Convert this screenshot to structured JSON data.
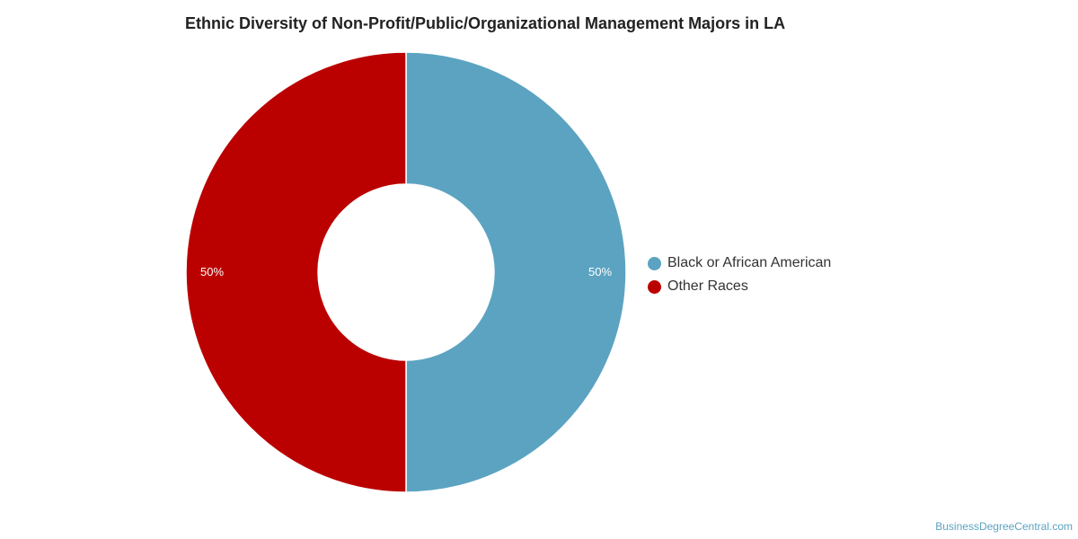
{
  "chart_data": {
    "type": "pie",
    "title": "Ethnic Diversity of Non-Profit/Public/Organizational Management Majors in LA",
    "donut": true,
    "slices": [
      {
        "label": "Black or African American",
        "value": 50,
        "display": "50%",
        "color": "#5ba3c1"
      },
      {
        "label": "Other Races",
        "value": 50,
        "display": "50%",
        "color": "#bb0000"
      }
    ],
    "legend_position": "right"
  },
  "credit": "BusinessDegreeCentral.com"
}
